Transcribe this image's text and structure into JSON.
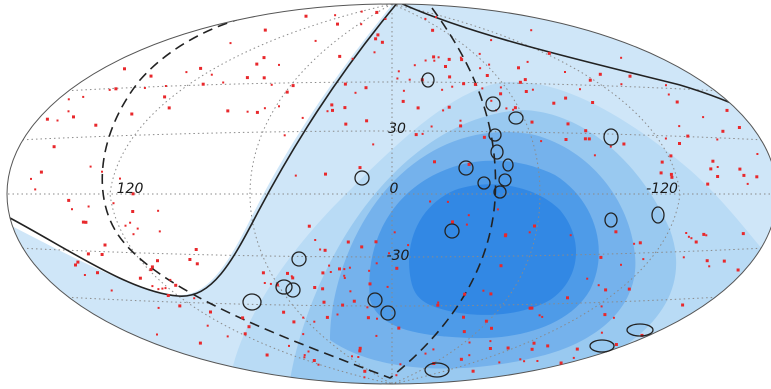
{
  "map": {
    "projection": "aitoff-hammer",
    "coordinate_system": "galactic",
    "grid": true,
    "longitude_labels": [
      {
        "id": "lon-120-left",
        "text": "120"
      },
      {
        "id": "lon-0",
        "text": "0"
      },
      {
        "id": "lon-120-right",
        "text": "-120"
      }
    ],
    "latitude_labels": [
      {
        "id": "lat-30",
        "text": "30"
      },
      {
        "id": "lat-minus-30",
        "text": "-30"
      }
    ]
  },
  "colors": {
    "background": "#ffffff",
    "exposure_level_1": "#cfe6f8",
    "exposure_level_2": "#b0d4f3",
    "exposure_level_3": "#86bded",
    "exposure_level_4": "#5aa4ea",
    "exposure_level_5": "#3a8ee6",
    "exposure_level_6": "#2a7fe2",
    "event_marker": "#e8282c",
    "source_circle": "#222222",
    "grid": "#8a8a8a",
    "boundary_line": "#222222"
  }
}
